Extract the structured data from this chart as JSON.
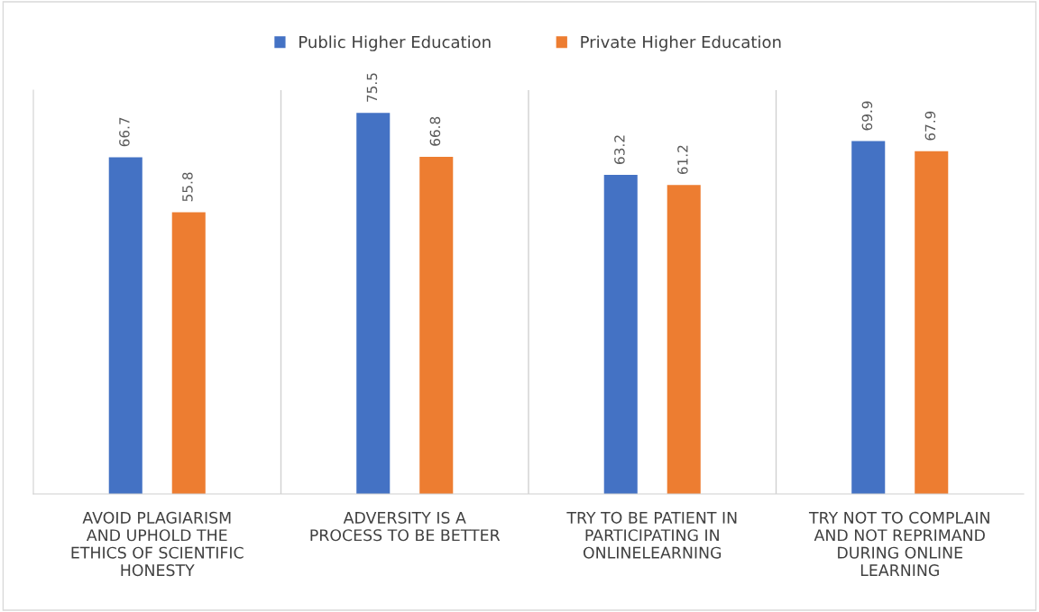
{
  "chart_data": {
    "type": "bar",
    "categories": [
      "AVOID PLAGIARISM\nAND UPHOLD THE\nETHICS OF SCIENTIFIC\nHONESTY",
      "ADVERSITY IS A\nPROCESS TO BE BETTER",
      "TRY TO BE PATIENT IN\nPARTICIPATING IN\nONLINELEARNING",
      "TRY NOT TO COMPLAIN\nAND NOT REPRIMAND\nDURING ONLINE\nLEARNING"
    ],
    "series": [
      {
        "name": "Public Higher Education",
        "color": "#4472c4",
        "values": [
          66.7,
          75.5,
          63.2,
          69.9
        ]
      },
      {
        "name": "Private Higher Education",
        "color": "#ed7d31",
        "values": [
          55.8,
          66.8,
          61.2,
          67.9
        ]
      }
    ],
    "ylim": [
      0,
      80
    ],
    "tick_labels": "x",
    "data_labels": true,
    "legend": "top",
    "grid": false
  }
}
